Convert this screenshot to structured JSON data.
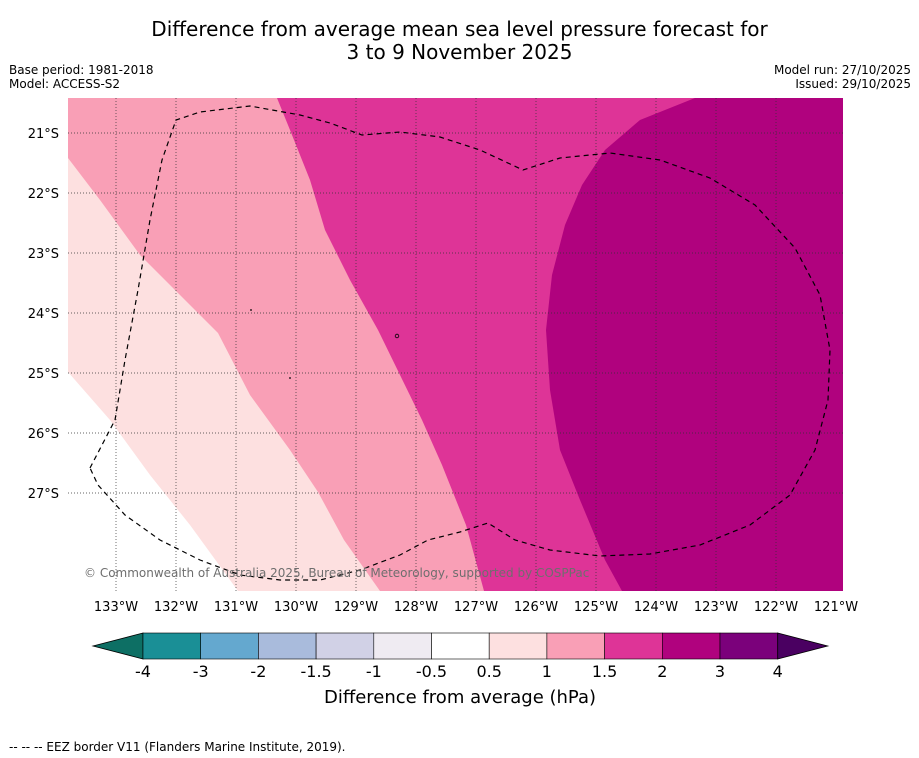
{
  "title": {
    "line1": "Difference from average mean sea level pressure forecast for",
    "line2": "3 to 9 November 2025"
  },
  "meta": {
    "base_period": "Base period: 1981-2018",
    "model": "Model: ACCESS-S2",
    "model_run": "Model run: 27/10/2025",
    "issued": "Issued: 29/10/2025"
  },
  "map": {
    "lat_labels": [
      "21°S",
      "22°S",
      "23°S",
      "24°S",
      "25°S",
      "26°S",
      "27°S"
    ],
    "lon_labels": [
      "133°W",
      "132°W",
      "131°W",
      "130°W",
      "129°W",
      "128°W",
      "127°W",
      "126°W",
      "125°W",
      "124°W",
      "123°W",
      "122°W",
      "121°W"
    ],
    "copyright": "© Commonwealth of Australia 2025, Bureau of Meteorology, supported by COSPPac"
  },
  "colorbar": {
    "label": "Difference from average (hPa)",
    "ticks": [
      "-4",
      "-3",
      "-2",
      "-1.5",
      "-1",
      "-0.5",
      "0.5",
      "1",
      "1.5",
      "2",
      "3",
      "4"
    ],
    "colors": [
      "#1a8f96",
      "#64a8cf",
      "#a9bbdc",
      "#d1d1e6",
      "#efebf2",
      "#ffffff",
      "#fde0e0",
      "#f99fb6",
      "#de3497",
      "#b0027e",
      "#7b017b"
    ],
    "under_color": "#0d6f64",
    "over_color": "#4a0061"
  },
  "legend_colors": {
    "c_0_5_1": "#fde0e0",
    "c_1_1_5": "#f99fb6",
    "c_1_5_2": "#de3497",
    "c_2_3": "#b0027e"
  },
  "footer": {
    "eez_note": "--  --  -- EEZ border V11 (Flanders Marine Institute, 2019)."
  }
}
